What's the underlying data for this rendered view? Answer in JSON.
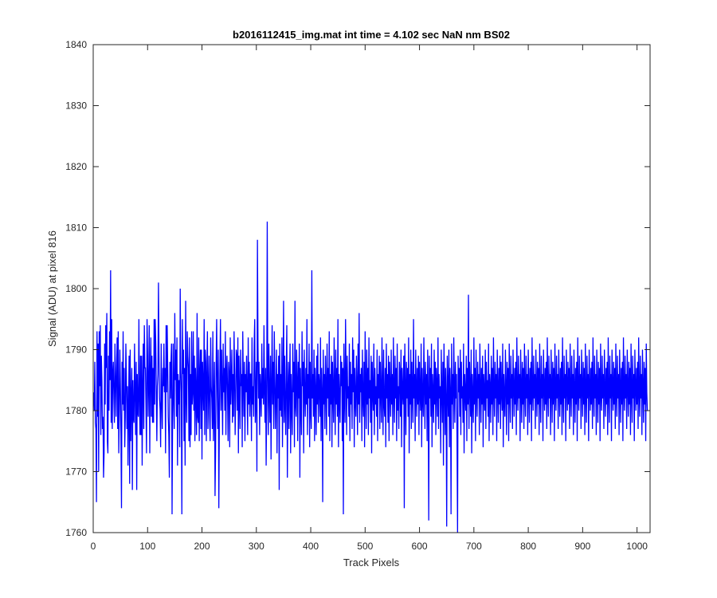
{
  "chart_data": {
    "type": "line",
    "title": "b2016112415_img.mat int time = 4.102 sec  NaN nm BS02",
    "xlabel": "Track Pixels",
    "ylabel": "Signal (ADU) at pixel 816",
    "xlim": [
      0,
      1024
    ],
    "ylim": [
      1760,
      1840
    ],
    "xticks": [
      0,
      100,
      200,
      300,
      400,
      500,
      600,
      700,
      800,
      900,
      1000
    ],
    "yticks": [
      1760,
      1770,
      1780,
      1790,
      1800,
      1810,
      1820,
      1830,
      1840
    ],
    "grid": false,
    "series_color": "#0000ff",
    "series": [
      {
        "x_start": 1,
        "x_step": 1,
        "values_note_free": true,
        "values": [
          1783,
          1780,
          1788,
          1778,
          1777,
          1765,
          1793,
          1779,
          1791,
          1770,
          1793,
          1784,
          1794,
          1776,
          1789,
          1785,
          1777,
          1779,
          1769,
          1773,
          1791,
          1781,
          1794,
          1787,
          1796,
          1775,
          1773,
          1789,
          1780,
          1793,
          1785,
          1803,
          1778,
          1795,
          1777,
          1786,
          1788,
          1782,
          1778,
          1791,
          1785,
          1779,
          1787,
          1792,
          1777,
          1793,
          1773,
          1780,
          1790,
          1784,
          1776,
          1764,
          1788,
          1781,
          1793,
          1780,
          1787,
          1774,
          1779,
          1791,
          1786,
          1777,
          1784,
          1771,
          1781,
          1789,
          1768,
          1790,
          1775,
          1782,
          1787,
          1767,
          1785,
          1779,
          1778,
          1791,
          1783,
          1776,
          1788,
          1767,
          1786,
          1780,
          1779,
          1795,
          1782,
          1776,
          1789,
          1776,
          1789,
          1771,
          1784,
          1791,
          1777,
          1794,
          1787,
          1787,
          1781,
          1773,
          1795,
          1789,
          1779,
          1785,
          1794,
          1773,
          1786,
          1792,
          1779,
          1789,
          1778,
          1787,
          1778,
          1795,
          1781,
          1795,
          1791,
          1783,
          1775,
          1784,
          1786,
          1801,
          1789,
          1782,
          1780,
          1774,
          1791,
          1782,
          1777,
          1787,
          1784,
          1791,
          1783,
          1787,
          1773,
          1794,
          1783,
          1794,
          1787,
          1779,
          1776,
          1769,
          1788,
          1782,
          1788,
          1791,
          1763,
          1779,
          1791,
          1782,
          1777,
          1796,
          1785,
          1790,
          1779,
          1792,
          1771,
          1786,
          1781,
          1785,
          1774,
          1800,
          1787,
          1783,
          1763,
          1795,
          1786,
          1790,
          1775,
          1787,
          1771,
          1798,
          1783,
          1778,
          1793,
          1789,
          1787,
          1775,
          1792,
          1774,
          1786,
          1776,
          1793,
          1781,
          1783,
          1793,
          1780,
          1789,
          1775,
          1787,
          1783,
          1776,
          1796,
          1779,
          1778,
          1792,
          1775,
          1786,
          1790,
          1777,
          1790,
          1772,
          1788,
          1784,
          1780,
          1795,
          1776,
          1790,
          1788,
          1775,
          1786,
          1793,
          1777,
          1783,
          1789,
          1779,
          1775,
          1792,
          1784,
          1782,
          1777,
          1793,
          1775,
          1781,
          1788,
          1766,
          1773,
          1787,
          1795,
          1784,
          1777,
          1790,
          1764,
          1779,
          1787,
          1795,
          1780,
          1790,
          1784,
          1776,
          1791,
          1783,
          1787,
          1780,
          1793,
          1776,
          1786,
          1789,
          1783,
          1775,
          1788,
          1786,
          1774,
          1792,
          1781,
          1785,
          1790,
          1778,
          1786,
          1779,
          1793,
          1786,
          1776,
          1782,
          1790,
          1789,
          1780,
          1792,
          1773,
          1789,
          1782,
          1777,
          1790,
          1784,
          1786,
          1774,
          1793,
          1785,
          1779,
          1788,
          1775,
          1786,
          1783,
          1789,
          1783,
          1776,
          1792,
          1781,
          1788,
          1779,
          1786,
          1786,
          1775,
          1792,
          1781,
          1784,
          1779,
          1791,
          1795,
          1778,
          1782,
          1788,
          1770,
          1808,
          1791,
          1782,
          1788,
          1776,
          1786,
          1783,
          1779,
          1791,
          1782,
          1787,
          1781,
          1794,
          1783,
          1778,
          1787,
          1771,
          1781,
          1811,
          1786,
          1776,
          1791,
          1783,
          1778,
          1789,
          1772,
          1784,
          1794,
          1781,
          1788,
          1777,
          1793,
          1785,
          1777,
          1783,
          1790,
          1773,
          1786,
          1782,
          1789,
          1767,
          1791,
          1780,
          1786,
          1779,
          1792,
          1774,
          1784,
          1798,
          1778,
          1789,
          1781,
          1776,
          1787,
          1794,
          1769,
          1783,
          1788,
          1777,
          1785,
          1791,
          1773,
          1786,
          1781,
          1776,
          1791,
          1783,
          1788,
          1774,
          1798,
          1781,
          1779,
          1790,
          1785,
          1775,
          1788,
          1782,
          1791,
          1769,
          1787,
          1781,
          1776,
          1793,
          1784,
          1788,
          1773,
          1790,
          1783,
          1779,
          1787,
          1781,
          1795,
          1776,
          1786,
          1782,
          1791,
          1774,
          1788,
          1780,
          1777,
          1803,
          1782,
          1786,
          1779,
          1790,
          1775,
          1787,
          1783,
          1776,
          1789,
          1781,
          1791,
          1778,
          1786,
          1784,
          1779,
          1792,
          1775,
          1787,
          1783,
          1765,
          1790,
          1781,
          1786,
          1777,
          1789,
          1784,
          1776,
          1791,
          1782,
          1787,
          1779,
          1793,
          1775,
          1786,
          1781,
          1789,
          1774,
          1788,
          1783,
          1778,
          1792,
          1784,
          1776,
          1790,
          1781,
          1787,
          1779,
          1795,
          1774,
          1786,
          1782,
          1778,
          1789,
          1784,
          1788,
          1775,
          1787,
          1763,
          1791,
          1783,
          1778,
          1795,
          1786,
          1776,
          1789,
          1782,
          1784,
          1779,
          1791,
          1775,
          1788,
          1781,
          1786,
          1777,
          1792,
          1783,
          1790,
          1774,
          1787,
          1782,
          1779,
          1789,
          1784,
          1776,
          1791,
          1781,
          1796,
          1778,
          1786,
          1783,
          1787,
          1775,
          1790,
          1782,
          1779,
          1788,
          1774,
          1793,
          1784,
          1777,
          1790,
          1781,
          1787,
          1776,
          1792,
          1782,
          1785,
          1778,
          1789,
          1773,
          1788,
          1783,
          1780,
          1791,
          1776,
          1787,
          1781,
          1784,
          1779,
          1790,
          1775,
          1786,
          1782,
          1789,
          1777,
          1788,
          1783,
          1778,
          1792,
          1784,
          1776,
          1790,
          1781,
          1779,
          1787,
          1774,
          1791,
          1782,
          1786,
          1778,
          1789,
          1775,
          1788,
          1784,
          1779,
          1790,
          1781,
          1786,
          1776,
          1792,
          1783,
          1778,
          1789,
          1782,
          1787,
          1775,
          1791,
          1780,
          1784,
          1777,
          1788,
          1786,
          1779,
          1790,
          1774,
          1787,
          1783,
          1781,
          1789,
          1764,
          1791,
          1784,
          1776,
          1788,
          1782,
          1787,
          1779,
          1792,
          1773,
          1786,
          1781,
          1790,
          1777,
          1788,
          1783,
          1778,
          1795,
          1782,
          1786,
          1775,
          1790,
          1784,
          1779,
          1787,
          1781,
          1789,
          1776,
          1788,
          1783,
          1780,
          1791,
          1774,
          1787,
          1782,
          1779,
          1792,
          1784,
          1777,
          1788,
          1781,
          1786,
          1775,
          1790,
          1783,
          1762,
          1789,
          1782,
          1787,
          1779,
          1791,
          1774,
          1786,
          1783,
          1778,
          1790,
          1781,
          1788,
          1776,
          1787,
          1784,
          1779,
          1792,
          1777,
          1786,
          1782,
          1784,
          1773,
          1790,
          1783,
          1778,
          1788,
          1771,
          1791,
          1785,
          1776,
          1787,
          1782,
          1761,
          1789,
          1784,
          1779,
          1790,
          1774,
          1787,
          1783,
          1763,
          1791,
          1781,
          1786,
          1777,
          1792,
          1784,
          1778,
          1788,
          1782,
          1786,
          1775,
          1760,
          1789,
          1783,
          1787,
          1779,
          1790,
          1776,
          1788,
          1782,
          1784,
          1778,
          1791,
          1773,
          1786,
          1783,
          1780,
          1789,
          1775,
          1787,
          1781,
          1799,
          1777,
          1788,
          1784,
          1779,
          1790,
          1773,
          1786,
          1782,
          1778,
          1792,
          1781,
          1787,
          1775,
          1790,
          1783,
          1779,
          1788,
          1782,
          1786,
          1776,
          1791,
          1784,
          1778,
          1787,
          1781,
          1789,
          1774,
          1786,
          1783,
          1780,
          1790,
          1777,
          1788,
          1782,
          1785,
          1779,
          1791,
          1775,
          1786,
          1784,
          1778,
          1789,
          1781,
          1787,
          1776,
          1792,
          1783,
          1779,
          1788,
          1782,
          1786,
          1775,
          1790,
          1784,
          1778,
          1787,
          1781,
          1789,
          1777,
          1788,
          1783,
          1780,
          1791,
          1774,
          1786,
          1782,
          1779,
          1790,
          1784,
          1776,
          1788,
          1781,
          1787,
          1775,
          1791,
          1783,
          1778,
          1789,
          1782,
          1786,
          1777,
          1790,
          1784,
          1779,
          1787,
          1781,
          1788,
          1776,
          1792,
          1783,
          1780,
          1789,
          1782,
          1786,
          1775,
          1790,
          1784,
          1778,
          1788,
          1781,
          1787,
          1777,
          1791,
          1783,
          1779,
          1789,
          1782,
          1786,
          1776,
          1790,
          1784,
          1778,
          1787,
          1781,
          1788,
          1775,
          1792,
          1783,
          1780,
          1789,
          1782,
          1786,
          1777,
          1790,
          1784,
          1779,
          1788,
          1781,
          1787,
          1776,
          1791,
          1783,
          1778,
          1789,
          1782,
          1786,
          1775,
          1790,
          1784,
          1780,
          1787,
          1781,
          1788,
          1777,
          1792,
          1783,
          1779,
          1789,
          1782,
          1786,
          1776,
          1790,
          1784,
          1778,
          1788,
          1781,
          1787,
          1775,
          1791,
          1783,
          1780,
          1789,
          1782,
          1786,
          1777,
          1790,
          1784,
          1779,
          1787,
          1781,
          1788,
          1776,
          1792,
          1783,
          1778,
          1789,
          1782,
          1786,
          1775,
          1790,
          1784,
          1780,
          1788,
          1781,
          1787,
          1777,
          1791,
          1783,
          1779,
          1789,
          1782,
          1786,
          1776,
          1790,
          1784,
          1778,
          1787,
          1781,
          1788,
          1775,
          1792,
          1783,
          1780,
          1789,
          1782,
          1786,
          1777,
          1790,
          1784,
          1779,
          1788,
          1781,
          1787,
          1776,
          1791,
          1783,
          1778,
          1789,
          1782,
          1786,
          1775,
          1790,
          1784,
          1780,
          1787,
          1781,
          1788,
          1777,
          1792,
          1783,
          1779,
          1789,
          1782,
          1786,
          1776,
          1790,
          1784,
          1778,
          1788,
          1781,
          1787,
          1775,
          1791,
          1783,
          1780,
          1789,
          1782,
          1786,
          1777,
          1790,
          1784,
          1779,
          1787,
          1781,
          1788,
          1776,
          1792,
          1783,
          1778,
          1789,
          1782,
          1786,
          1775,
          1790,
          1784,
          1780,
          1788,
          1781,
          1787,
          1777,
          1791,
          1783,
          1779,
          1789,
          1782,
          1786,
          1776,
          1790,
          1784,
          1778,
          1787,
          1781,
          1788,
          1775,
          1792,
          1783,
          1780,
          1789,
          1782,
          1786,
          1777,
          1790,
          1784,
          1779,
          1788,
          1781,
          1787,
          1776,
          1791,
          1783,
          1778,
          1789,
          1782,
          1786,
          1775,
          1790,
          1784,
          1780,
          1787,
          1781,
          1788,
          1777,
          1792,
          1783,
          1779,
          1789,
          1782,
          1786,
          1776,
          1790,
          1784,
          1778,
          1788,
          1781,
          1787,
          1775,
          1791,
          1783,
          1780
        ]
      }
    ]
  }
}
